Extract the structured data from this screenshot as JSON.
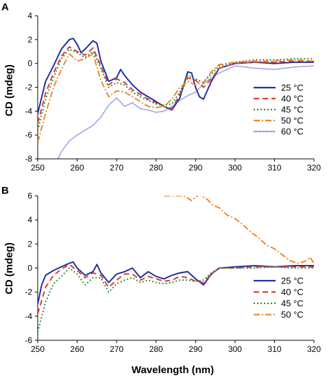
{
  "chart_data": [
    {
      "panel": "A",
      "type": "line",
      "xlabel": "Wavelength (nm)",
      "ylabel": "CD (mdeg)",
      "xlim": [
        250,
        320
      ],
      "ylim": [
        -8,
        4
      ],
      "xticks": [
        250,
        260,
        270,
        280,
        290,
        300,
        310,
        320
      ],
      "yticks": [
        -8,
        -6,
        -4,
        -2,
        0,
        2,
        4
      ],
      "legend": "center-right",
      "series": [
        {
          "name": "25 °C",
          "color": "#1f2f9e",
          "dash": "solid",
          "x": [
            250,
            252,
            254,
            256,
            258,
            259,
            260,
            261,
            262,
            264,
            265,
            266,
            268,
            270,
            271,
            272,
            274,
            276,
            278,
            280,
            282,
            284,
            286,
            288,
            289,
            290,
            291,
            292,
            294,
            296,
            300,
            305,
            310,
            315,
            320
          ],
          "y": [
            -4.2,
            -1.5,
            -0.2,
            1.2,
            2.0,
            2.1,
            1.6,
            0.9,
            1.2,
            1.9,
            1.7,
            0.2,
            -1.5,
            -1.2,
            -0.5,
            -1.0,
            -1.8,
            -2.4,
            -2.8,
            -3.2,
            -3.6,
            -3.9,
            -2.9,
            -0.7,
            -0.8,
            -2.0,
            -2.8,
            -3.0,
            -1.5,
            -0.4,
            0.0,
            0.1,
            0.0,
            0.1,
            0.1
          ]
        },
        {
          "name": "40 °C",
          "color": "#e03b2b",
          "dash": "8,5",
          "x": [
            250,
            252,
            254,
            256,
            258,
            260,
            262,
            264,
            266,
            268,
            270,
            272,
            274,
            276,
            278,
            280,
            282,
            284,
            286,
            288,
            290,
            292,
            294,
            296,
            300,
            305,
            310,
            315,
            320
          ],
          "y": [
            -5.0,
            -2.5,
            -0.8,
            0.6,
            1.4,
            1.0,
            0.7,
            1.3,
            -0.2,
            -1.8,
            -1.3,
            -1.6,
            -2.2,
            -2.6,
            -3.0,
            -3.3,
            -3.6,
            -3.8,
            -2.6,
            -1.2,
            -1.4,
            -2.0,
            -1.3,
            -0.4,
            0.0,
            0.1,
            0.1,
            0.2,
            0.2
          ]
        },
        {
          "name": "45 °C",
          "color": "#2e8b3a",
          "dash": "2,3",
          "x": [
            250,
            252,
            254,
            256,
            258,
            260,
            262,
            264,
            266,
            268,
            270,
            272,
            274,
            276,
            278,
            280,
            282,
            284,
            286,
            288,
            290,
            292,
            294,
            296,
            300,
            305,
            310,
            315,
            320
          ],
          "y": [
            -5.6,
            -3.0,
            -1.2,
            0.4,
            1.2,
            0.9,
            0.5,
            1.0,
            -0.4,
            -2.0,
            -1.6,
            -1.8,
            -2.4,
            -2.8,
            -3.1,
            -3.4,
            -3.5,
            -3.4,
            -2.4,
            -1.0,
            -1.3,
            -1.6,
            -0.9,
            -0.2,
            0.1,
            0.3,
            0.3,
            0.4,
            0.4
          ]
        },
        {
          "name": "50 °C",
          "color": "#e88a2e",
          "dash": "9,3,2,3",
          "x": [
            250,
            252,
            254,
            256,
            258,
            260,
            262,
            264,
            266,
            268,
            270,
            272,
            274,
            276,
            278,
            280,
            282,
            284,
            286,
            288,
            290,
            292,
            294,
            296,
            300,
            305,
            310,
            315,
            320
          ],
          "y": [
            -6.6,
            -4.2,
            -2.0,
            -0.5,
            0.8,
            0.2,
            0.4,
            0.8,
            -1.4,
            -2.8,
            -2.3,
            -2.4,
            -2.8,
            -3.2,
            -3.6,
            -3.7,
            -3.6,
            -3.0,
            -2.0,
            -1.5,
            -1.8,
            -1.6,
            -0.7,
            -0.1,
            0.1,
            0.2,
            0.2,
            0.3,
            0.2
          ]
        },
        {
          "name": "60 °C",
          "color": "#3a4fd0",
          "dash": "1,1",
          "x": [
            250,
            254,
            256,
            258,
            260,
            262,
            264,
            266,
            268,
            270,
            272,
            274,
            276,
            278,
            280,
            282,
            284,
            286,
            288,
            290,
            292,
            294,
            296,
            300,
            305,
            310,
            315,
            320
          ],
          "y": [
            -9.5,
            -8.8,
            -7.4,
            -6.5,
            -6.0,
            -5.6,
            -5.2,
            -4.5,
            -3.5,
            -2.9,
            -3.6,
            -3.3,
            -3.8,
            -3.9,
            -4.1,
            -4.0,
            -3.6,
            -3.1,
            -2.7,
            -2.4,
            -1.7,
            -1.2,
            -0.8,
            -0.2,
            -0.4,
            -0.5,
            -0.3,
            -0.2
          ]
        }
      ]
    },
    {
      "panel": "B",
      "type": "line",
      "xlabel": "Wavelength (nm)",
      "ylabel": "CD (mdeg)",
      "xlim": [
        250,
        320
      ],
      "ylim": [
        -6,
        6
      ],
      "xticks": [
        250,
        260,
        270,
        280,
        290,
        300,
        310,
        320
      ],
      "yticks": [
        -6,
        -4,
        -2,
        0,
        2,
        4,
        6
      ],
      "legend": "bottom-right",
      "series": [
        {
          "name": "25 °C",
          "color": "#1f2f9e",
          "dash": "solid",
          "x": [
            250,
            251,
            252,
            253,
            254,
            256,
            258,
            259,
            260,
            262,
            264,
            265,
            266,
            268,
            270,
            272,
            274,
            276,
            278,
            280,
            282,
            284,
            286,
            288,
            290,
            292,
            294,
            296,
            300,
            305,
            310,
            315,
            320
          ],
          "y": [
            -3.0,
            -1.4,
            -0.6,
            -0.4,
            -0.2,
            0.1,
            0.4,
            0.5,
            0.0,
            -0.6,
            -0.3,
            0.3,
            -0.4,
            -1.2,
            -0.5,
            -0.3,
            0.0,
            -0.8,
            -0.3,
            -0.7,
            -0.9,
            -0.6,
            -0.4,
            -0.3,
            -0.9,
            -1.4,
            -0.5,
            0.0,
            0.1,
            0.2,
            0.1,
            0.2,
            0.2
          ]
        },
        {
          "name": "40 °C",
          "color": "#e03b2b",
          "dash": "8,5",
          "x": [
            250,
            252,
            254,
            256,
            258,
            260,
            262,
            264,
            266,
            268,
            270,
            272,
            274,
            276,
            278,
            280,
            282,
            284,
            286,
            288,
            290,
            292,
            294,
            296,
            300,
            305,
            310,
            315,
            320
          ],
          "y": [
            -3.8,
            -1.6,
            -0.6,
            -0.1,
            0.3,
            -0.2,
            -0.8,
            -0.4,
            -0.6,
            -1.6,
            -1.0,
            -0.5,
            -0.5,
            -1.0,
            -0.7,
            -0.9,
            -1.1,
            -1.0,
            -0.7,
            -0.8,
            -1.1,
            -1.2,
            -0.5,
            0.0,
            0.0,
            0.1,
            0.1,
            0.1,
            0.1
          ]
        },
        {
          "name": "45 °C",
          "color": "#2e8b3a",
          "dash": "2,3",
          "x": [
            250,
            252,
            254,
            256,
            258,
            260,
            262,
            264,
            266,
            268,
            270,
            272,
            274,
            276,
            278,
            280,
            282,
            284,
            286,
            288,
            290,
            292,
            294,
            296,
            300,
            305,
            310,
            315,
            320
          ],
          "y": [
            -5.3,
            -2.8,
            -1.3,
            -0.7,
            0.0,
            -0.5,
            -1.4,
            -0.8,
            -0.8,
            -2.0,
            -1.3,
            -1.0,
            -0.8,
            -1.2,
            -1.0,
            -1.2,
            -1.3,
            -1.2,
            -1.0,
            -1.0,
            -1.1,
            -1.0,
            -0.4,
            0.0,
            0.0,
            0.0,
            0.1,
            0.0,
            0.0
          ]
        },
        {
          "name": "50 °C",
          "color": "#e88a2e",
          "dash": "9,3,2,3",
          "x": [
            282,
            287,
            288,
            289,
            290,
            291,
            292,
            293,
            294,
            296,
            298,
            300,
            302,
            304,
            306,
            308,
            310,
            312,
            314,
            316,
            318,
            319,
            320
          ],
          "y": [
            6.0,
            6.0,
            5.8,
            5.6,
            5.9,
            6.1,
            5.9,
            5.7,
            5.3,
            5.0,
            4.4,
            4.1,
            3.6,
            3.0,
            2.5,
            1.9,
            1.6,
            1.1,
            0.6,
            0.4,
            0.6,
            0.9,
            0.4
          ]
        }
      ]
    }
  ]
}
